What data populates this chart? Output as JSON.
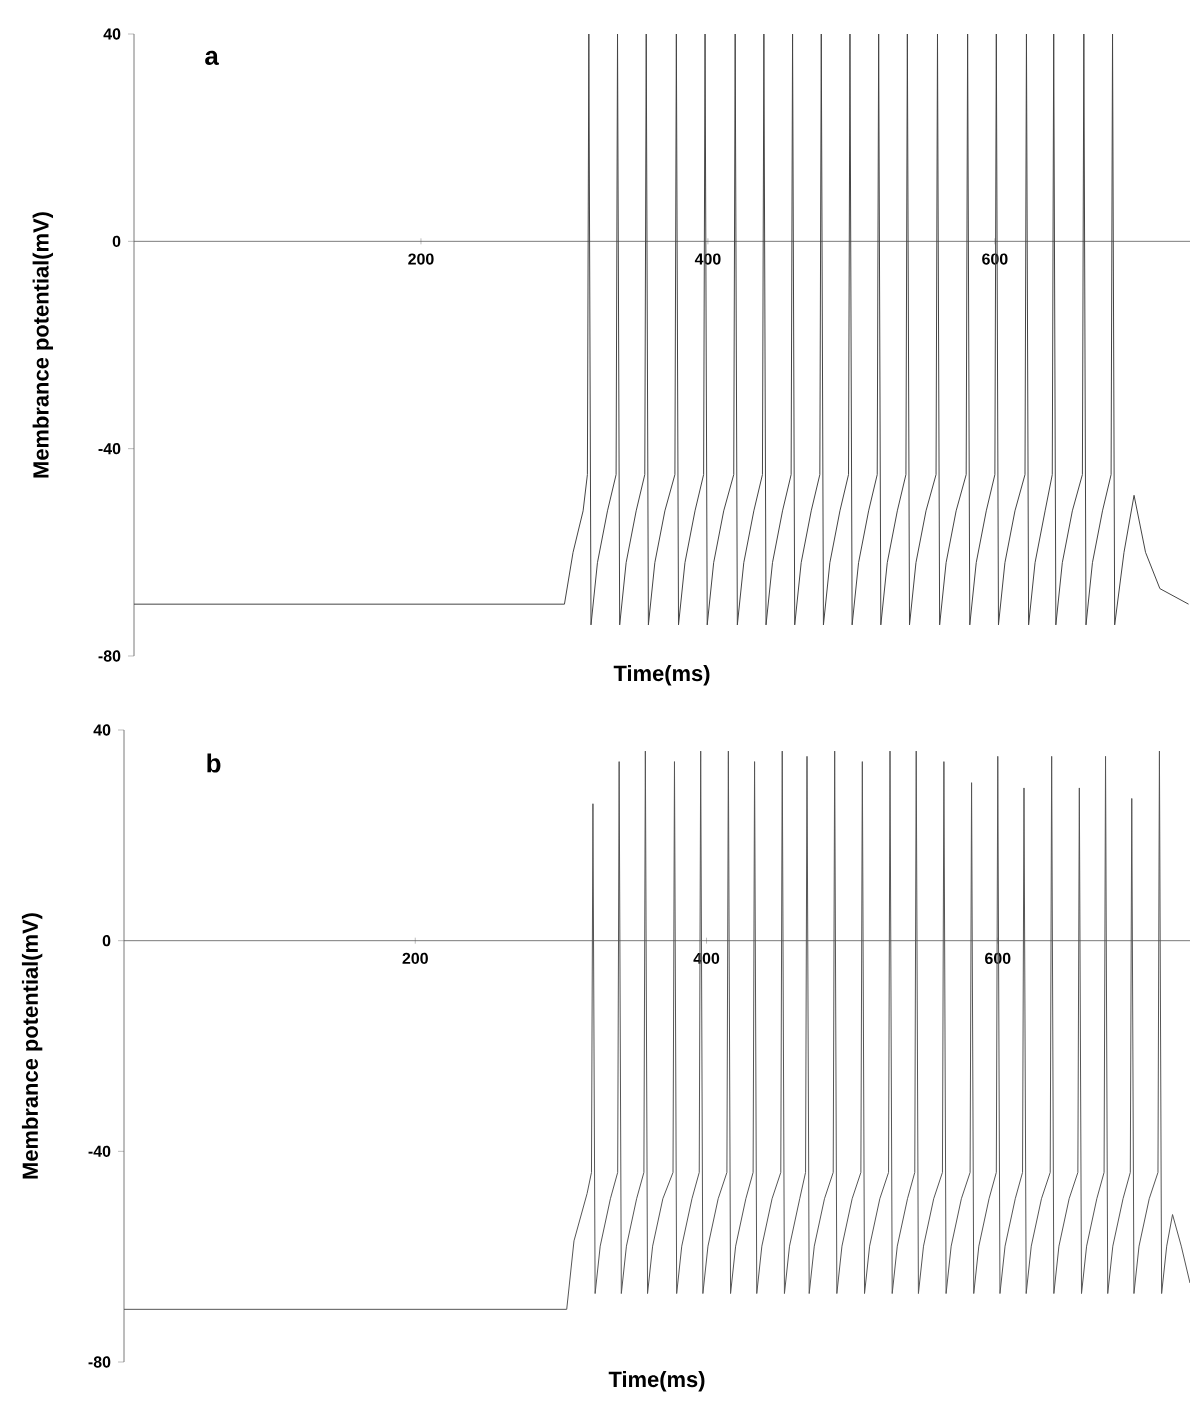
{
  "chart_data": [
    {
      "type": "line",
      "title": "a",
      "xlabel": "Time(ms)",
      "ylabel": "Membrance potential(mV)",
      "xlim": [
        0,
        736
      ],
      "ylim": [
        -80,
        40
      ],
      "xticks": [
        200,
        400,
        600
      ],
      "yticks": [
        -80,
        -40,
        0,
        40
      ],
      "series": [
        {
          "color": "#444444",
          "x": [
            0,
            300,
            306,
            313,
            316,
            317,
            318.5,
            323,
            330,
            336,
            337,
            338.5,
            343,
            350,
            356,
            357,
            358.5,
            363,
            370,
            377,
            378,
            379.5,
            384,
            391,
            397,
            398,
            399.5,
            404,
            411,
            418,
            419,
            420.5,
            425,
            432,
            438,
            439,
            440.5,
            445,
            452,
            458,
            459,
            460.5,
            465,
            472,
            478,
            479,
            480.5,
            485,
            492,
            498,
            499,
            500.5,
            505,
            512,
            518,
            519,
            520.5,
            525,
            532,
            538,
            539,
            540.5,
            545,
            552,
            559,
            560,
            561.5,
            566,
            573,
            580,
            581,
            582.5,
            587,
            594,
            600,
            601,
            602.5,
            607,
            614,
            621,
            622,
            623.5,
            628,
            635,
            640,
            641,
            642.5,
            647,
            654,
            661,
            662,
            663.5,
            668,
            675,
            681,
            682,
            683.5,
            690,
            697,
            705,
            715,
            735
          ],
          "values": [
            -70,
            -70,
            -60,
            -52,
            -45,
            40,
            -74,
            -62,
            -52,
            -45,
            40,
            -74,
            -62,
            -52,
            -45,
            40,
            -74,
            -62,
            -52,
            -45,
            40,
            -74,
            -62,
            -52,
            -45,
            40,
            -74,
            -62,
            -52,
            -45,
            40,
            -74,
            -62,
            -52,
            -45,
            40,
            -74,
            -62,
            -52,
            -45,
            40,
            -74,
            -62,
            -52,
            -45,
            40,
            -74,
            -62,
            -52,
            -45,
            40,
            -74,
            -62,
            -52,
            -45,
            40,
            -74,
            -62,
            -52,
            -45,
            40,
            -74,
            -62,
            -52,
            -45,
            40,
            -74,
            -62,
            -52,
            -45,
            40,
            -74,
            -62,
            -52,
            -45,
            40,
            -74,
            -62,
            -52,
            -45,
            40,
            -74,
            -62,
            -52,
            -45,
            40,
            -74,
            -62,
            -52,
            -45,
            40,
            -74,
            -62,
            -52,
            -45,
            40,
            -74,
            -60,
            -49,
            -60,
            -67,
            -70
          ]
        }
      ]
    },
    {
      "type": "line",
      "title": "b",
      "xlabel": "Time(ms)",
      "ylabel": "Membrance potential(mV)",
      "xlim": [
        0,
        732
      ],
      "ylim": [
        -80,
        40
      ],
      "xticks": [
        200,
        400,
        600
      ],
      "yticks": [
        -80,
        -40,
        0,
        40
      ],
      "series": [
        {
          "color": "#555555",
          "x": [
            0,
            304,
            309,
            318,
            321,
            322,
            323.5,
            327,
            334,
            339,
            340,
            341.5,
            345,
            352,
            357,
            358,
            359.5,
            363,
            370,
            377,
            378,
            379.5,
            383,
            390,
            395,
            396,
            397.5,
            401,
            408,
            414,
            415,
            416.5,
            420,
            427,
            432,
            433,
            434.5,
            438,
            445,
            451,
            452,
            453.5,
            457,
            464,
            468,
            469,
            470.5,
            474,
            481,
            487,
            488,
            489.5,
            493,
            500,
            506,
            507,
            508.5,
            512,
            519,
            525,
            526,
            527.5,
            531,
            538,
            543,
            544,
            545.5,
            549,
            556,
            562,
            563,
            564.5,
            568,
            575,
            581,
            582,
            583.5,
            587,
            594,
            599,
            600,
            601.5,
            605,
            612,
            617,
            618,
            619.5,
            623,
            630,
            636,
            637,
            638.5,
            642,
            649,
            655,
            656,
            657.5,
            661,
            668,
            673,
            674,
            675.5,
            679,
            686,
            691,
            692,
            693.5,
            697,
            704,
            710,
            711,
            712.5,
            716,
            720,
            726,
            732
          ],
          "values": [
            -70,
            -70,
            -57,
            -48,
            -44,
            26,
            -67,
            -58,
            -49,
            -44,
            34,
            -67,
            -58,
            -49,
            -44,
            36,
            -67,
            -58,
            -49,
            -44,
            34,
            -67,
            -58,
            -49,
            -44,
            36,
            -67,
            -58,
            -49,
            -44,
            36,
            -67,
            -58,
            -49,
            -44,
            34,
            -67,
            -58,
            -49,
            -44,
            36,
            -67,
            -58,
            -49,
            -44,
            35,
            -67,
            -58,
            -49,
            -44,
            36,
            -67,
            -58,
            -49,
            -44,
            34,
            -67,
            -58,
            -49,
            -44,
            36,
            -67,
            -58,
            -49,
            -44,
            36,
            -67,
            -58,
            -49,
            -44,
            34,
            -67,
            -58,
            -49,
            -44,
            30,
            -67,
            -58,
            -49,
            -44,
            35,
            -67,
            -58,
            -49,
            -44,
            29,
            -67,
            -58,
            -49,
            -44,
            35,
            -67,
            -58,
            -49,
            -44,
            29,
            -67,
            -58,
            -49,
            -44,
            35,
            -67,
            -58,
            -49,
            -44,
            27,
            -67,
            -58,
            -49,
            -44,
            36,
            -67,
            -58,
            -52,
            -58,
            -65
          ]
        }
      ]
    }
  ]
}
